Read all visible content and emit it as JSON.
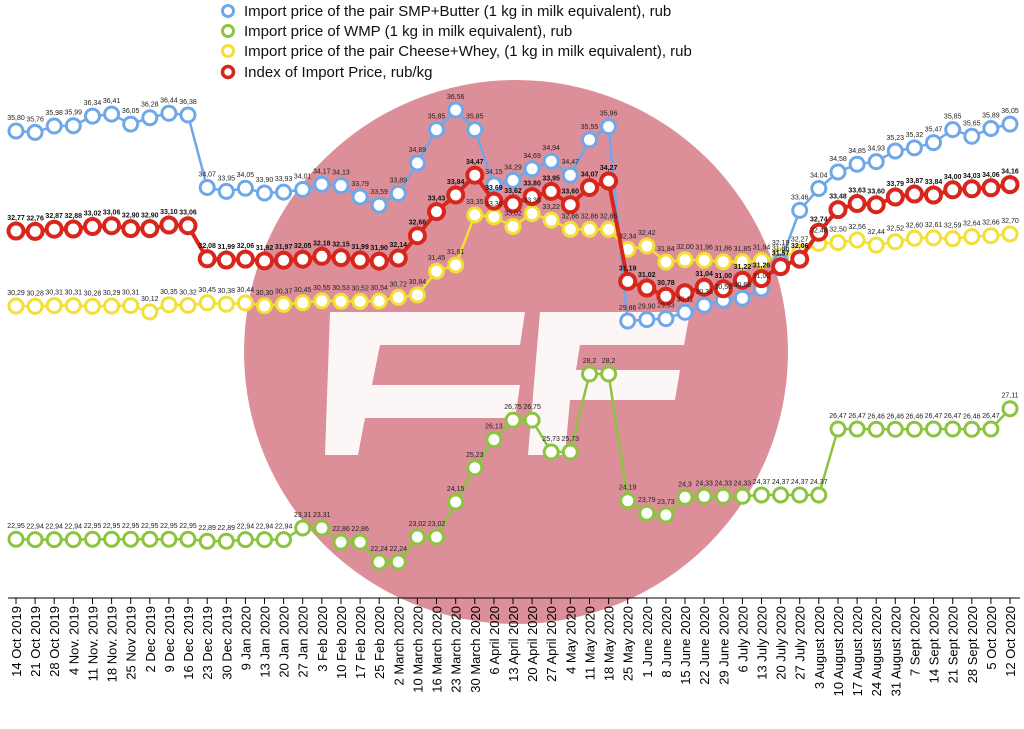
{
  "chart_data": {
    "type": "line",
    "title": "",
    "xlabel": "",
    "ylabel": "",
    "categories": [
      "14 Oct 2019",
      "21 Oct 2019",
      "28 Oct 2019",
      "4 Nov. 2019",
      "11 Nov. 2019",
      "18 Nov. 2019",
      "25 Nov 2019",
      "2 Dec 2019",
      "9 Dec 2019",
      "16 Dec 2019",
      "23 Dec 2019",
      "30 Dec 2019",
      "9 Jan 2020",
      "13 Jan 2020",
      "20 Jan 2020",
      "27 Jan 2020",
      "3 Feb 2020",
      "10 Feb 2020",
      "17 Feb 2020",
      "25 Feb 2020",
      "2 March 2020",
      "10 March 2020",
      "16 March 2020",
      "23 March 2020",
      "30 March 2020",
      "6 April 2020",
      "13 April 2020",
      "20 April 2020",
      "27 April 2020",
      "4 May 2020",
      "11 May 2020",
      "18 May 2020",
      "25 May 2020",
      "1 June 2020",
      "8 June 2020",
      "15 June 2020",
      "22 June 2020",
      "29 June 2020",
      "6 July 2020",
      "13 July 2020",
      "20 July 2020",
      "27 July 2020",
      "3 August 2020",
      "10 August 2020",
      "17 August 2020",
      "24 August 2020",
      "31 August 2020",
      "7 Sept 2020",
      "14 Sept 2020",
      "21 Sept 2020",
      "28 Sept 2020",
      "5 Oct 2020",
      "12 Oct 2020"
    ],
    "series": [
      {
        "name": "Import price of the pair SMP+Butter (1 kg in milk equivalent), rub",
        "color": "#6fa8e8",
        "values": [
          35.8,
          35.76,
          35.98,
          35.99,
          36.34,
          36.41,
          36.05,
          36.28,
          36.44,
          36.38,
          34.07,
          33.95,
          34.05,
          33.9,
          33.93,
          34.01,
          34.17,
          34.13,
          33.79,
          33.59,
          33.89,
          34.89,
          35.85,
          36.56,
          35.85,
          34.15,
          34.29,
          34.69,
          34.94,
          34.47,
          35.55,
          35.96,
          29.86,
          29.9,
          29.93,
          30.11,
          30.33,
          30.58,
          30.68,
          31.0,
          31.86,
          33.46,
          34.04,
          34.58,
          34.85,
          34.93,
          35.23,
          35.32,
          35.47,
          35.85,
          35.65,
          35.89,
          36.05
        ],
        "labels": [
          "35,80",
          "35,76",
          "35,98",
          "35,99",
          "36,34",
          "36,41",
          "36,05",
          "36,28",
          "36,44",
          "36,38",
          "34,07",
          "33,95",
          "34,05",
          "33,90",
          "33,93",
          "34,01",
          "34,17",
          "34,13",
          "33,79",
          "33,59",
          "33,89",
          "34,89",
          "35,85",
          "36,56",
          "35,85",
          "34,15",
          "34,29",
          "34,69",
          "34,94",
          "34,47",
          "35,55",
          "35,96",
          "29,86",
          "29,90",
          "29,93",
          "30,11",
          "30,33",
          "30,58",
          "30,68",
          "31,00",
          "31,86",
          "33,46",
          "34,04",
          "34,58",
          "34,85",
          "34,93",
          "35,23",
          "35,32",
          "35,47",
          "35,85",
          "35,65",
          "35,89",
          "36,05"
        ]
      },
      {
        "name": "Import price of WMP (1 kg in milk equivalent), rub",
        "color": "#8bc53f",
        "values": [
          22.95,
          22.94,
          22.94,
          22.94,
          22.95,
          22.95,
          22.95,
          22.95,
          22.95,
          22.95,
          22.89,
          22.89,
          22.94,
          22.94,
          22.94,
          23.31,
          23.31,
          22.86,
          22.86,
          22.24,
          22.24,
          23.02,
          23.02,
          24.15,
          25.23,
          26.13,
          26.75,
          26.75,
          25.73,
          25.73,
          28.2,
          28.2,
          24.19,
          23.79,
          23.73,
          24.3,
          24.33,
          24.33,
          24.33,
          24.37,
          24.37,
          24.37,
          24.37,
          26.47,
          26.47,
          26.46,
          26.46,
          26.46,
          26.47,
          26.47,
          26.46,
          26.47,
          27.11
        ],
        "labels": [
          "22,95",
          "22,94",
          "22,94",
          "22,94",
          "22,95",
          "22,95",
          "22,95",
          "22,95",
          "22,95",
          "22,95",
          "22,89",
          "22,89",
          "22,94",
          "22,94",
          "22,94",
          "23,31",
          "23,31",
          "22,86",
          "22,86",
          "22,24",
          "22,24",
          "23,02",
          "23,02",
          "24,15",
          "25,23",
          "26,13",
          "26,75",
          "26,75",
          "25,73",
          "25,73",
          "28,2",
          "28,2",
          "24,19",
          "23,79",
          "23,73",
          "24,3",
          "24,33",
          "24,33",
          "24,33",
          "24,37",
          "24,37",
          "24,37",
          "24,37",
          "26,47",
          "26,47",
          "26,46",
          "26,46",
          "26,46",
          "26,47",
          "26,47",
          "26,46",
          "26,47",
          "27,11"
        ]
      },
      {
        "name": "Import price of the pair Cheese+Whey,  (1 kg in milk equivalent), rub",
        "color": "#f2e034",
        "values": [
          30.29,
          30.28,
          30.31,
          30.31,
          30.28,
          30.29,
          30.31,
          30.12,
          30.35,
          30.32,
          30.45,
          30.38,
          30.44,
          30.3,
          30.37,
          30.45,
          30.55,
          30.53,
          30.52,
          30.54,
          30.72,
          30.84,
          31.45,
          31.61,
          33.35,
          33.3,
          33.02,
          33.38,
          33.22,
          32.86,
          32.86,
          32.86,
          32.34,
          32.42,
          31.84,
          32.0,
          31.96,
          31.86,
          31.85,
          31.94,
          32.19,
          32.27,
          32.48,
          32.5,
          32.56,
          32.44,
          32.52,
          32.6,
          32.61,
          32.59,
          32.64,
          32.66,
          32.7
        ],
        "labels": [
          "30,29",
          "30,28",
          "30,31",
          "30,31",
          "30,28",
          "30,29",
          "30,31",
          "30,12",
          "30,35",
          "30,32",
          "30,45",
          "30,38",
          "30,44",
          "30,30",
          "30,37",
          "30,45",
          "30,55",
          "30,53",
          "30,52",
          "30,54",
          "30,72",
          "30,84",
          "31,45",
          "31,61",
          "33,35",
          "33,30",
          "33,02",
          "33,38",
          "33,22",
          "32,86",
          "32,86",
          "32,86",
          "32,34",
          "32,42",
          "31,84",
          "32,00",
          "31,96",
          "31,86",
          "31,85",
          "31,94",
          "32,19",
          "32,27",
          "32,48",
          "32,50",
          "32,56",
          "32,44",
          "32,52",
          "32,60",
          "32,61",
          "32,59",
          "32,64",
          "32,66",
          "32,70"
        ]
      },
      {
        "name": "Index of Import Price, rub/kg",
        "color": "#d9261c",
        "values": [
          32.77,
          32.76,
          32.87,
          32.88,
          33.02,
          33.06,
          32.9,
          32.9,
          33.1,
          33.06,
          32.08,
          31.99,
          32.06,
          31.92,
          31.97,
          32.05,
          32.18,
          32.15,
          31.99,
          31.9,
          32.14,
          32.66,
          33.43,
          33.84,
          34.47,
          33.69,
          33.62,
          33.8,
          33.95,
          33.6,
          34.07,
          34.27,
          31.19,
          31.02,
          30.78,
          30.9,
          31.04,
          31.0,
          31.22,
          31.26,
          31.57,
          32.06,
          32.74,
          33.48,
          33.63,
          33.6,
          33.79,
          33.87,
          33.84,
          34.0,
          34.03,
          34.06,
          34.16
        ],
        "labels": [
          "32,77",
          "32,76",
          "32,87",
          "32,88",
          "33,02",
          "33,06",
          "32,90",
          "32,90",
          "33,10",
          "33,06",
          "32,08",
          "31,99",
          "32,06",
          "31,92",
          "31,97",
          "32,05",
          "32,18",
          "32,15",
          "31,99",
          "31,90",
          "32,14",
          "32,66",
          "33,43",
          "33,84",
          "34,47",
          "33,69",
          "33,62",
          "33,80",
          "33,95",
          "33,60",
          "34,07",
          "34,27",
          "31,19",
          "31,02",
          "30,78",
          "",
          "31,04",
          "31,00",
          "31,22",
          "31,26",
          "31,57",
          "32,06",
          "32,74",
          "33,48",
          "33,63",
          "33,60",
          "33,79",
          "33,87",
          "33,84",
          "34,00",
          "34,03",
          "34,06",
          "34,16"
        ]
      }
    ]
  }
}
